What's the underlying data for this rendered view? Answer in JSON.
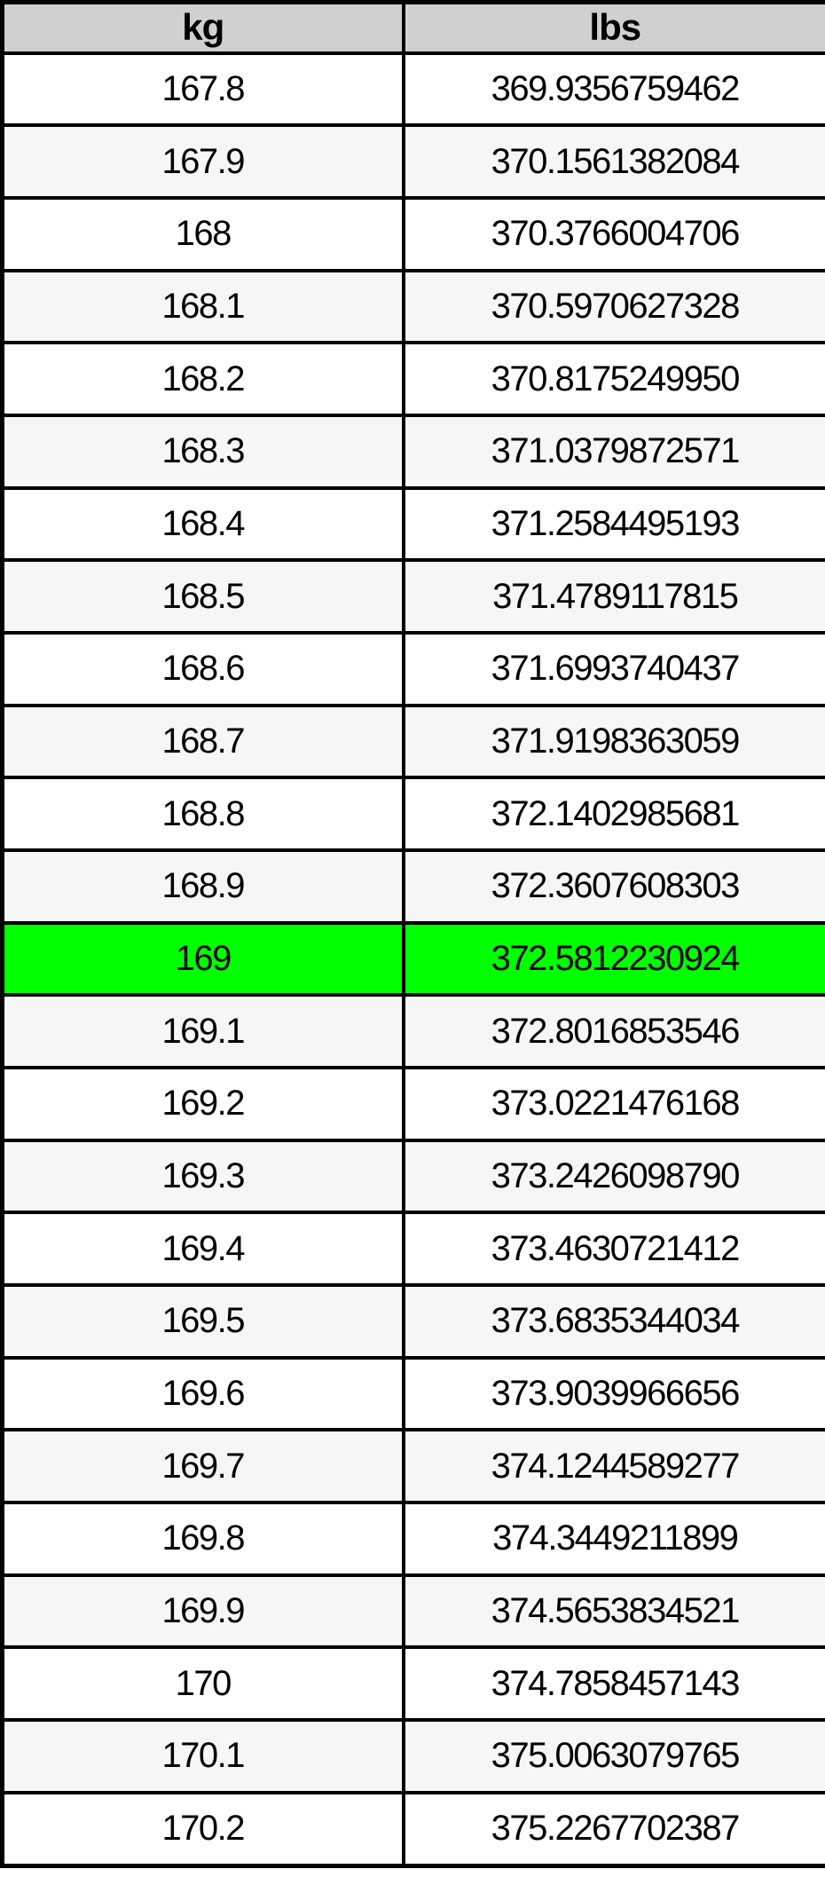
{
  "table": {
    "columns": [
      {
        "key": "kg",
        "label": "kg"
      },
      {
        "key": "lbs",
        "label": "lbs"
      }
    ],
    "colors": {
      "header_bg": "#d0d0d0",
      "row_bg": "#ffffff",
      "row_alt_bg": "#f6f6f6",
      "highlight_bg": "#00ff00",
      "border": "#000000",
      "text": "#000000"
    },
    "rows": [
      {
        "kg": "167.8",
        "lbs": "369.9356759462",
        "highlighted": false
      },
      {
        "kg": "167.9",
        "lbs": "370.1561382084",
        "highlighted": false
      },
      {
        "kg": "168",
        "lbs": "370.3766004706",
        "highlighted": false
      },
      {
        "kg": "168.1",
        "lbs": "370.5970627328",
        "highlighted": false
      },
      {
        "kg": "168.2",
        "lbs": "370.8175249950",
        "highlighted": false
      },
      {
        "kg": "168.3",
        "lbs": "371.0379872571",
        "highlighted": false
      },
      {
        "kg": "168.4",
        "lbs": "371.2584495193",
        "highlighted": false
      },
      {
        "kg": "168.5",
        "lbs": "371.4789117815",
        "highlighted": false
      },
      {
        "kg": "168.6",
        "lbs": "371.6993740437",
        "highlighted": false
      },
      {
        "kg": "168.7",
        "lbs": "371.9198363059",
        "highlighted": false
      },
      {
        "kg": "168.8",
        "lbs": "372.1402985681",
        "highlighted": false
      },
      {
        "kg": "168.9",
        "lbs": "372.3607608303",
        "highlighted": false
      },
      {
        "kg": "169",
        "lbs": "372.5812230924",
        "highlighted": true
      },
      {
        "kg": "169.1",
        "lbs": "372.8016853546",
        "highlighted": false
      },
      {
        "kg": "169.2",
        "lbs": "373.0221476168",
        "highlighted": false
      },
      {
        "kg": "169.3",
        "lbs": "373.2426098790",
        "highlighted": false
      },
      {
        "kg": "169.4",
        "lbs": "373.4630721412",
        "highlighted": false
      },
      {
        "kg": "169.5",
        "lbs": "373.6835344034",
        "highlighted": false
      },
      {
        "kg": "169.6",
        "lbs": "373.9039966656",
        "highlighted": false
      },
      {
        "kg": "169.7",
        "lbs": "374.1244589277",
        "highlighted": false
      },
      {
        "kg": "169.8",
        "lbs": "374.3449211899",
        "highlighted": false
      },
      {
        "kg": "169.9",
        "lbs": "374.5653834521",
        "highlighted": false
      },
      {
        "kg": "170",
        "lbs": "374.7858457143",
        "highlighted": false
      },
      {
        "kg": "170.1",
        "lbs": "375.0063079765",
        "highlighted": false
      },
      {
        "kg": "170.2",
        "lbs": "375.2267702387",
        "highlighted": false
      }
    ]
  }
}
